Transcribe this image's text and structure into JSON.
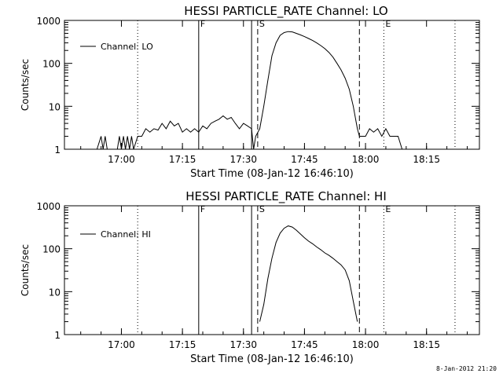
{
  "footer": {
    "timestamp": "8-Jan-2012 21:20"
  },
  "chart_data": [
    {
      "type": "line",
      "title": "HESSI PARTICLE_RATE Channel: LO",
      "xlabel": "Start Time (08-Jan-12 16:46:10)",
      "ylabel": "Counts/sec",
      "yscale": "log",
      "ylim": [
        1,
        1000
      ],
      "xlim": [
        "16:46",
        "18:28"
      ],
      "xticks": [
        "17:00",
        "17:15",
        "17:30",
        "17:45",
        "18:00",
        "18:15"
      ],
      "yticks": [
        "1",
        "10",
        "100",
        "1000"
      ],
      "grid": false,
      "legend": {
        "position": "top-left",
        "entries": [
          "Channel: LO"
        ]
      },
      "markers": [
        {
          "time": "17:04",
          "style": "dotted",
          "label": ""
        },
        {
          "time": "17:19",
          "style": "solid",
          "label": "F"
        },
        {
          "time": "17:32",
          "style": "solid",
          "label": ""
        },
        {
          "time": "17:33.5",
          "style": "dashed",
          "label": "S"
        },
        {
          "time": "17:58.5",
          "style": "dashed",
          "label": ""
        },
        {
          "time": "18:04.5",
          "style": "dotted",
          "label": "E"
        },
        {
          "time": "18:22",
          "style": "dotted",
          "label": ""
        }
      ],
      "series": [
        {
          "name": "Channel: LO",
          "points": [
            [
              "16:54",
              1
            ],
            [
              "16:55",
              2
            ],
            [
              "16:55.5",
              1
            ],
            [
              "16:56",
              2
            ],
            [
              "16:56.5",
              1
            ],
            [
              "16:59",
              1
            ],
            [
              "16:59.5",
              2
            ],
            [
              "17:00",
              1
            ],
            [
              "17:00.5",
              2
            ],
            [
              "17:01",
              1
            ],
            [
              "17:01.5",
              2
            ],
            [
              "17:02",
              1
            ],
            [
              "17:02.5",
              2
            ],
            [
              "17:03",
              1
            ],
            [
              "17:04",
              2
            ],
            [
              "17:05",
              2
            ],
            [
              "17:06",
              3
            ],
            [
              "17:07",
              2.5
            ],
            [
              "17:08",
              3
            ],
            [
              "17:09",
              2.8
            ],
            [
              "17:10",
              4
            ],
            [
              "17:11",
              3
            ],
            [
              "17:12",
              4.5
            ],
            [
              "17:13",
              3.5
            ],
            [
              "17:14",
              4
            ],
            [
              "17:15",
              2.5
            ],
            [
              "17:16",
              3
            ],
            [
              "17:17",
              2.5
            ],
            [
              "17:18",
              3
            ],
            [
              "17:19",
              2.5
            ],
            [
              "17:20",
              3.5
            ],
            [
              "17:21",
              3
            ],
            [
              "17:22",
              4
            ],
            [
              "17:23",
              4.5
            ],
            [
              "17:24",
              5
            ],
            [
              "17:25",
              6
            ],
            [
              "17:26",
              5
            ],
            [
              "17:27",
              5.5
            ],
            [
              "17:28",
              4
            ],
            [
              "17:29",
              3
            ],
            [
              "17:30",
              4
            ],
            [
              "17:31",
              3.5
            ],
            [
              "17:32",
              3
            ],
            [
              "17:32.5",
              1
            ],
            [
              "17:33",
              2
            ],
            [
              "17:34",
              3
            ],
            [
              "17:35",
              10
            ],
            [
              "17:36",
              40
            ],
            [
              "17:37",
              150
            ],
            [
              "17:38",
              300
            ],
            [
              "17:39",
              450
            ],
            [
              "17:40",
              520
            ],
            [
              "17:41",
              550
            ],
            [
              "17:42",
              540
            ],
            [
              "17:43",
              500
            ],
            [
              "17:44",
              460
            ],
            [
              "17:45",
              420
            ],
            [
              "17:46",
              380
            ],
            [
              "17:47",
              340
            ],
            [
              "17:48",
              300
            ],
            [
              "17:49",
              260
            ],
            [
              "17:50",
              220
            ],
            [
              "17:51",
              180
            ],
            [
              "17:52",
              140
            ],
            [
              "17:53",
              100
            ],
            [
              "17:54",
              70
            ],
            [
              "17:55",
              45
            ],
            [
              "17:56",
              25
            ],
            [
              "17:57",
              10
            ],
            [
              "17:58",
              3
            ],
            [
              "17:58.5",
              2
            ],
            [
              "18:00",
              2
            ],
            [
              "18:01",
              3
            ],
            [
              "18:02",
              2.5
            ],
            [
              "18:03",
              3
            ],
            [
              "18:04",
              2
            ],
            [
              "18:05",
              3
            ],
            [
              "18:06",
              2
            ],
            [
              "18:08",
              2
            ],
            [
              "18:09",
              1
            ]
          ]
        }
      ]
    },
    {
      "type": "line",
      "title": "HESSI PARTICLE_RATE Channel: HI",
      "xlabel": "Start Time (08-Jan-12 16:46:10)",
      "ylabel": "Counts/sec",
      "yscale": "log",
      "ylim": [
        1,
        1000
      ],
      "xlim": [
        "16:46",
        "18:28"
      ],
      "xticks": [
        "17:00",
        "17:15",
        "17:30",
        "17:45",
        "18:00",
        "18:15"
      ],
      "yticks": [
        "1",
        "10",
        "100",
        "1000"
      ],
      "grid": false,
      "legend": {
        "position": "top-left",
        "entries": [
          "Channel: HI"
        ]
      },
      "markers": [
        {
          "time": "17:04",
          "style": "dotted",
          "label": ""
        },
        {
          "time": "17:19",
          "style": "solid",
          "label": "F"
        },
        {
          "time": "17:32",
          "style": "solid",
          "label": ""
        },
        {
          "time": "17:33.5",
          "style": "dashed",
          "label": "S"
        },
        {
          "time": "17:58.5",
          "style": "dashed",
          "label": ""
        },
        {
          "time": "18:04.5",
          "style": "dotted",
          "label": "E"
        },
        {
          "time": "18:22",
          "style": "dotted",
          "label": ""
        }
      ],
      "series": [
        {
          "name": "Channel: HI",
          "points": [
            [
              "17:34",
              2
            ],
            [
              "17:35",
              5
            ],
            [
              "17:36",
              20
            ],
            [
              "17:37",
              60
            ],
            [
              "17:38",
              140
            ],
            [
              "17:39",
              230
            ],
            [
              "17:40",
              300
            ],
            [
              "17:41",
              340
            ],
            [
              "17:42",
              320
            ],
            [
              "17:43",
              270
            ],
            [
              "17:44",
              220
            ],
            [
              "17:45",
              180
            ],
            [
              "17:46",
              150
            ],
            [
              "17:47",
              130
            ],
            [
              "17:48",
              110
            ],
            [
              "17:49",
              95
            ],
            [
              "17:50",
              80
            ],
            [
              "17:51",
              70
            ],
            [
              "17:52",
              60
            ],
            [
              "17:53",
              50
            ],
            [
              "17:54",
              42
            ],
            [
              "17:55",
              32
            ],
            [
              "17:56",
              18
            ],
            [
              "17:57",
              6
            ],
            [
              "17:58",
              2
            ]
          ]
        }
      ]
    }
  ]
}
